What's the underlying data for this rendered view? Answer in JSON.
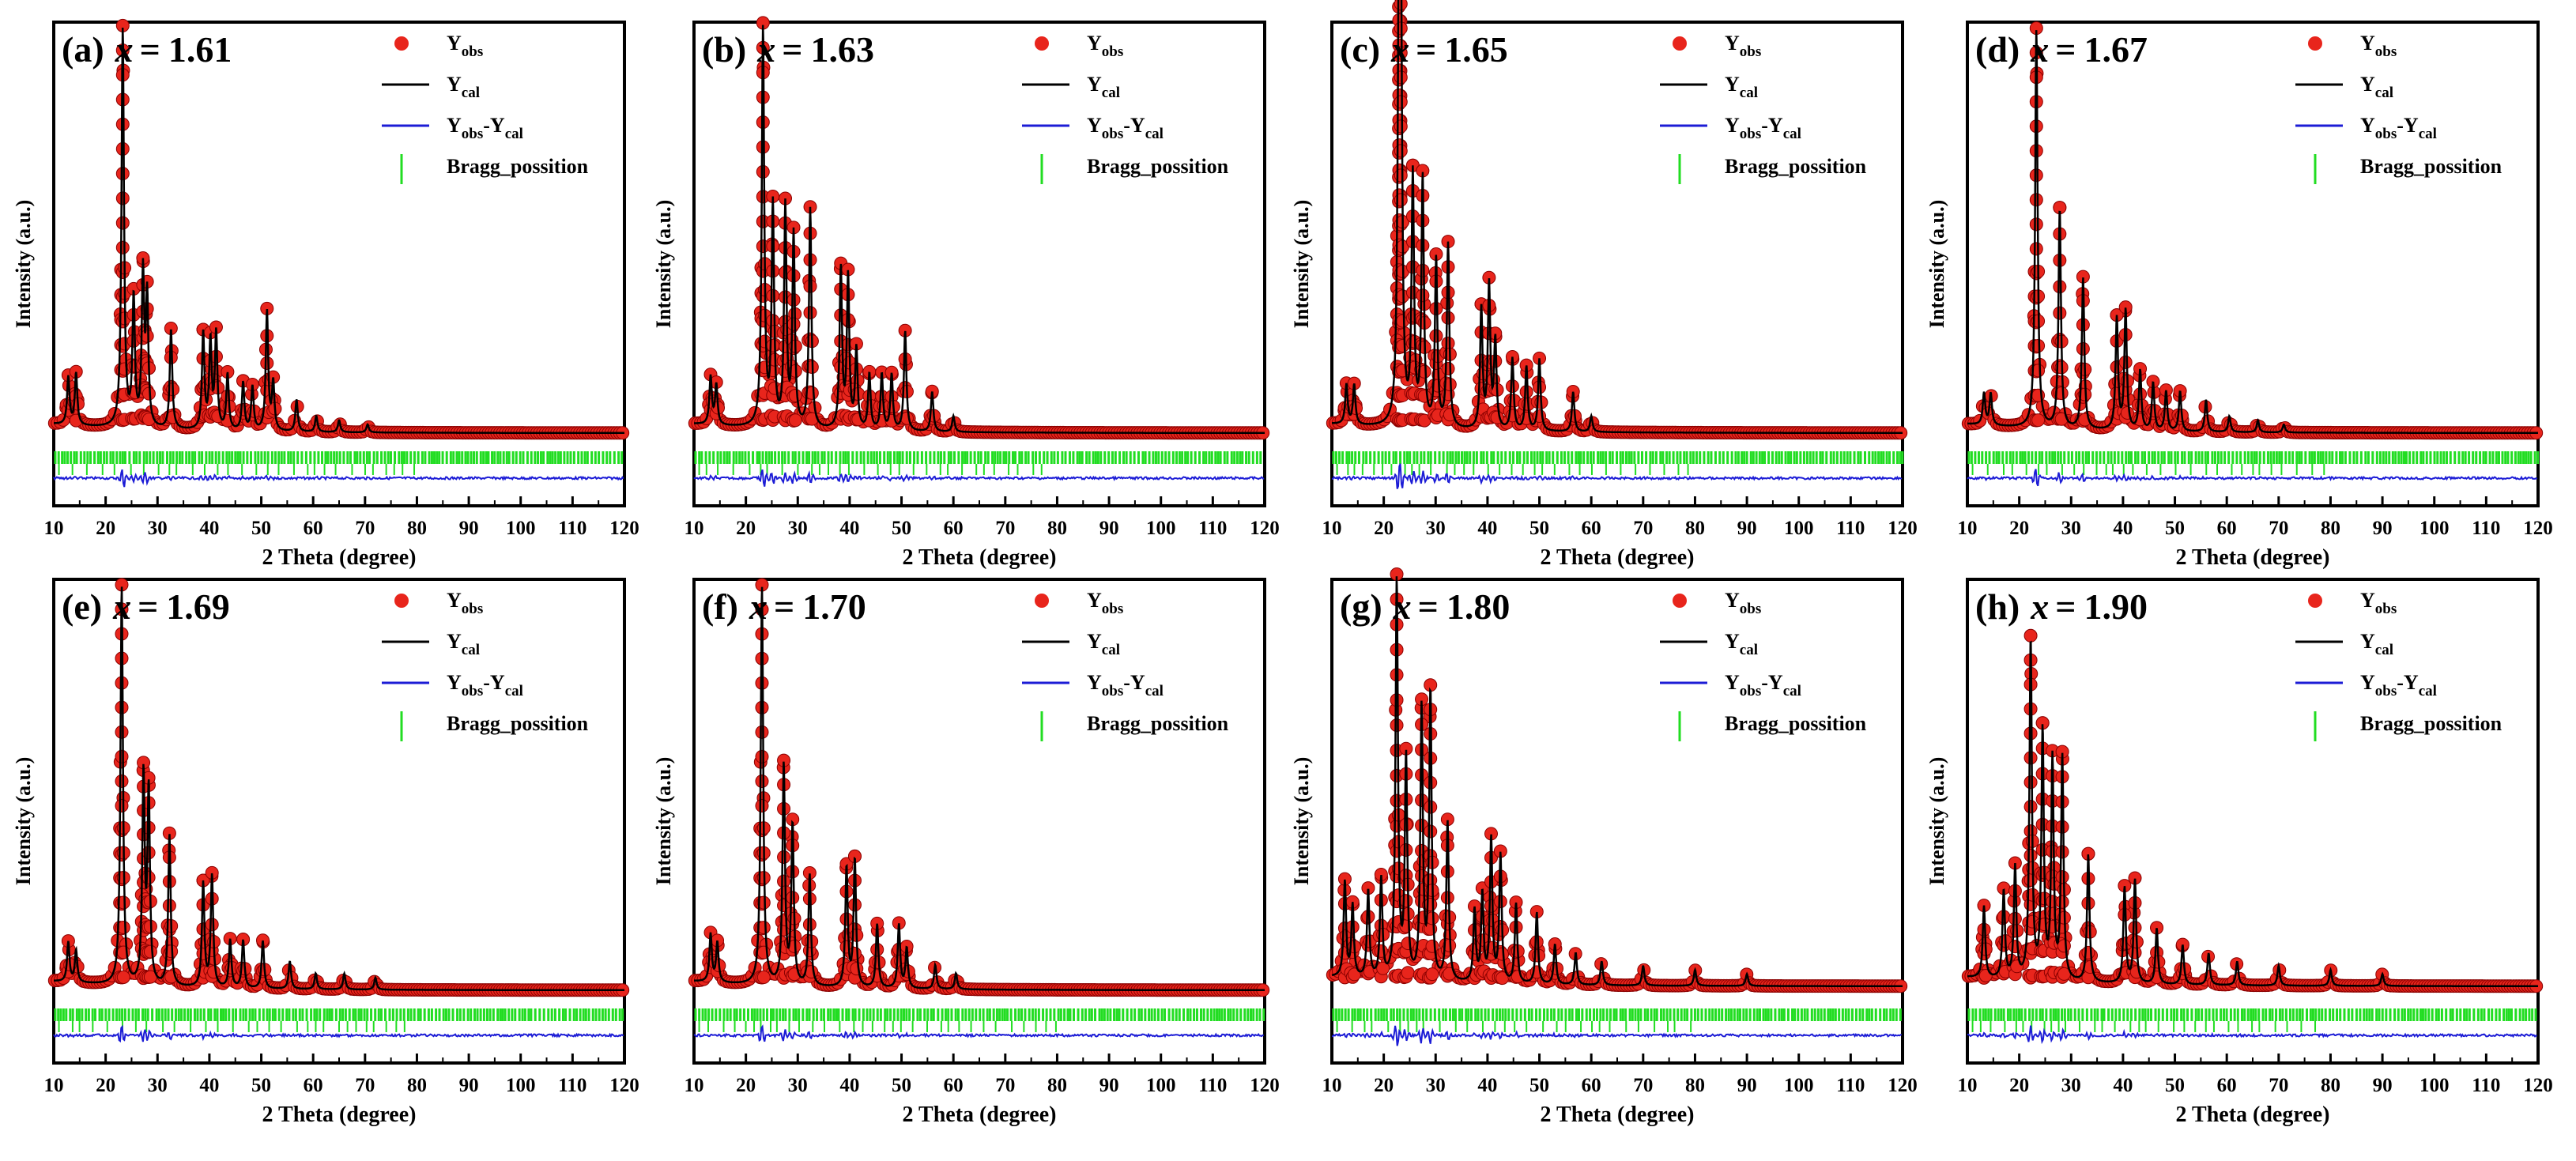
{
  "figure": {
    "shared_axes": {
      "xlabel": "2 Theta (degree)",
      "ylabel": "Intensity (a.u.)",
      "xlim": [
        10,
        120
      ],
      "xticks": [
        10,
        20,
        30,
        40,
        50,
        60,
        70,
        80,
        90,
        100,
        110,
        120
      ],
      "ytick_labels": false
    },
    "legend_entries": [
      {
        "base": "Y",
        "sub": "obs",
        "marker": "filled-circle",
        "color": "#e8251c"
      },
      {
        "base": "Y",
        "sub": "cal",
        "marker": "line",
        "color": "#000000"
      },
      {
        "base": "Y",
        "sub": "obs",
        "mid": "-Y",
        "sub2": "cal",
        "marker": "line",
        "color": "#1c1cd6"
      },
      {
        "base": "Bragg_possition",
        "sub": "",
        "marker": "vertical-tick",
        "color": "#22dd22"
      }
    ],
    "colors": {
      "observed": "#e8251c",
      "calculated": "#000000",
      "difference": "#1c1cd6",
      "bragg": "#22dd22",
      "axes": "#000000"
    }
  },
  "chart_data": [
    {
      "type": "line",
      "panel": "(a)",
      "var": "x",
      "value": "1.61",
      "xlabel": "2 Theta (degree)",
      "ylabel": "Intensity (a.u.)",
      "xlim": [
        10,
        120
      ],
      "ylim": [
        0,
        100
      ],
      "series": [
        {
          "name": "Yobs",
          "kind": "observed-points"
        },
        {
          "name": "Ycal",
          "kind": "calculated-line"
        },
        {
          "name": "Yobs-Ycal",
          "kind": "difference-line"
        },
        {
          "name": "Bragg_possition",
          "kind": "bragg-ticks"
        }
      ],
      "peaks": [
        [
          12.8,
          12
        ],
        [
          14.3,
          13
        ],
        [
          23.3,
          100
        ],
        [
          25.4,
          32
        ],
        [
          27.2,
          38
        ],
        [
          28.0,
          32
        ],
        [
          32.6,
          25
        ],
        [
          38.8,
          24
        ],
        [
          40.2,
          22
        ],
        [
          41.3,
          24
        ],
        [
          43.5,
          14
        ],
        [
          46.5,
          12
        ],
        [
          48.3,
          11
        ],
        [
          51.1,
          30
        ],
        [
          52.3,
          12
        ],
        [
          56.8,
          8
        ],
        [
          60.6,
          4
        ],
        [
          65.0,
          3
        ],
        [
          70.5,
          2
        ]
      ],
      "background": 3
    },
    {
      "type": "line",
      "panel": "(b)",
      "var": "x",
      "value": "1.63",
      "xlabel": "2 Theta (degree)",
      "ylabel": "Intensity (a.u.)",
      "xlim": [
        10,
        120
      ],
      "ylim": [
        0,
        100
      ],
      "series": [
        {
          "name": "Yobs",
          "kind": "observed-points"
        },
        {
          "name": "Ycal",
          "kind": "calculated-line"
        },
        {
          "name": "Yobs-Ycal",
          "kind": "difference-line"
        },
        {
          "name": "Bragg_possition",
          "kind": "bragg-ticks"
        }
      ],
      "peaks": [
        [
          13.2,
          12
        ],
        [
          14.3,
          10
        ],
        [
          23.3,
          100
        ],
        [
          25.2,
          55
        ],
        [
          27.6,
          55
        ],
        [
          29.2,
          48
        ],
        [
          32.4,
          55
        ],
        [
          38.3,
          40
        ],
        [
          39.7,
          38
        ],
        [
          41.3,
          20
        ],
        [
          43.8,
          14
        ],
        [
          46.2,
          14
        ],
        [
          48.1,
          14
        ],
        [
          50.7,
          25
        ],
        [
          55.9,
          10
        ],
        [
          60.0,
          4
        ]
      ],
      "background": 3
    },
    {
      "type": "line",
      "panel": "(c)",
      "var": "x",
      "value": "1.65",
      "xlabel": "2 Theta (degree)",
      "ylabel": "Intensity (a.u.)",
      "xlim": [
        10,
        120
      ],
      "ylim": [
        0,
        100
      ],
      "series": [
        {
          "name": "Yobs",
          "kind": "observed-points"
        },
        {
          "name": "Ycal",
          "kind": "calculated-line"
        },
        {
          "name": "Yobs-Ycal",
          "kind": "difference-line"
        },
        {
          "name": "Bragg_possition",
          "kind": "bragg-ticks"
        }
      ],
      "peaks": [
        [
          12.8,
          10
        ],
        [
          14.3,
          10
        ],
        [
          22.9,
          90
        ],
        [
          23.3,
          100
        ],
        [
          25.6,
          62
        ],
        [
          27.5,
          62
        ],
        [
          30.1,
          42
        ],
        [
          32.4,
          46
        ],
        [
          38.8,
          30
        ],
        [
          40.3,
          36
        ],
        [
          41.5,
          22
        ],
        [
          44.8,
          18
        ],
        [
          47.5,
          16
        ],
        [
          50.0,
          18
        ],
        [
          56.5,
          10
        ],
        [
          60.0,
          4
        ]
      ],
      "background": 3
    },
    {
      "type": "line",
      "panel": "(d)",
      "var": "x",
      "value": "1.67",
      "xlabel": "2 Theta (degree)",
      "ylabel": "Intensity (a.u.)",
      "xlim": [
        10,
        120
      ],
      "ylim": [
        0,
        100
      ],
      "series": [
        {
          "name": "Yobs",
          "kind": "observed-points"
        },
        {
          "name": "Ycal",
          "kind": "calculated-line"
        },
        {
          "name": "Yobs-Ycal",
          "kind": "difference-line"
        },
        {
          "name": "Bragg_possition",
          "kind": "bragg-ticks"
        }
      ],
      "peaks": [
        [
          13.2,
          8
        ],
        [
          14.5,
          8
        ],
        [
          23.3,
          100
        ],
        [
          27.8,
          55
        ],
        [
          32.3,
          38
        ],
        [
          38.8,
          28
        ],
        [
          40.5,
          30
        ],
        [
          43.3,
          15
        ],
        [
          45.8,
          12
        ],
        [
          48.3,
          10
        ],
        [
          51.0,
          10
        ],
        [
          56.0,
          8
        ],
        [
          60.5,
          4
        ],
        [
          66.0,
          3
        ],
        [
          71.0,
          2
        ]
      ],
      "background": 3
    },
    {
      "type": "line",
      "panel": "(e)",
      "var": "x",
      "value": "1.69",
      "xlabel": "2 Theta (degree)",
      "ylabel": "Intensity (a.u.)",
      "xlim": [
        10,
        120
      ],
      "ylim": [
        0,
        100
      ],
      "series": [
        {
          "name": "Yobs",
          "kind": "observed-points"
        },
        {
          "name": "Ycal",
          "kind": "calculated-line"
        },
        {
          "name": "Yobs-Ycal",
          "kind": "difference-line"
        },
        {
          "name": "Bragg_possition",
          "kind": "bragg-ticks"
        }
      ],
      "peaks": [
        [
          12.8,
          10
        ],
        [
          14.3,
          8
        ],
        [
          23.1,
          100
        ],
        [
          27.3,
          52
        ],
        [
          28.3,
          48
        ],
        [
          32.3,
          38
        ],
        [
          38.8,
          26
        ],
        [
          40.5,
          28
        ],
        [
          44.0,
          12
        ],
        [
          46.5,
          12
        ],
        [
          50.3,
          12
        ],
        [
          55.5,
          7
        ],
        [
          60.5,
          4
        ],
        [
          66.0,
          4
        ],
        [
          72.0,
          3
        ]
      ],
      "background": 3
    },
    {
      "type": "line",
      "panel": "(f)",
      "var": "x",
      "value": "1.70",
      "xlabel": "2 Theta (degree)",
      "ylabel": "Intensity (a.u.)",
      "xlim": [
        10,
        120
      ],
      "ylim": [
        0,
        100
      ],
      "series": [
        {
          "name": "Yobs",
          "kind": "observed-points"
        },
        {
          "name": "Ycal",
          "kind": "calculated-line"
        },
        {
          "name": "Yobs-Ycal",
          "kind": "difference-line"
        },
        {
          "name": "Bragg_possition",
          "kind": "bragg-ticks"
        }
      ],
      "peaks": [
        [
          13.2,
          12
        ],
        [
          14.5,
          10
        ],
        [
          23.1,
          100
        ],
        [
          27.3,
          55
        ],
        [
          29.0,
          40
        ],
        [
          32.3,
          28
        ],
        [
          39.4,
          30
        ],
        [
          41.0,
          32
        ],
        [
          45.3,
          16
        ],
        [
          49.5,
          16
        ],
        [
          51.0,
          10
        ],
        [
          56.5,
          6
        ],
        [
          60.5,
          4
        ]
      ],
      "background": 3
    },
    {
      "type": "line",
      "panel": "(g)",
      "var": "x",
      "value": "1.80",
      "xlabel": "2 Theta (degree)",
      "ylabel": "Intensity (a.u.)",
      "xlim": [
        10,
        120
      ],
      "ylim": [
        0,
        100
      ],
      "series": [
        {
          "name": "Yobs",
          "kind": "observed-points"
        },
        {
          "name": "Ycal",
          "kind": "calculated-line"
        },
        {
          "name": "Yobs-Ycal",
          "kind": "difference-line"
        },
        {
          "name": "Bragg_possition",
          "kind": "bragg-ticks"
        }
      ],
      "peaks": [
        [
          12.5,
          24
        ],
        [
          14.0,
          18
        ],
        [
          17.0,
          22
        ],
        [
          19.5,
          25
        ],
        [
          22.5,
          100
        ],
        [
          24.3,
          55
        ],
        [
          27.3,
          68
        ],
        [
          29.0,
          72
        ],
        [
          32.3,
          40
        ],
        [
          37.5,
          18
        ],
        [
          39.0,
          22
        ],
        [
          40.7,
          36
        ],
        [
          42.5,
          32
        ],
        [
          45.5,
          20
        ],
        [
          49.5,
          18
        ],
        [
          53.0,
          10
        ],
        [
          57.0,
          8
        ],
        [
          62.0,
          6
        ],
        [
          70.0,
          5
        ],
        [
          80.0,
          4
        ],
        [
          90.0,
          3
        ]
      ],
      "background": 4
    },
    {
      "type": "line",
      "panel": "(h)",
      "var": "x",
      "value": "1.90",
      "xlabel": "2 Theta (degree)",
      "ylabel": "Intensity (a.u.)",
      "xlim": [
        10,
        120
      ],
      "ylim": [
        0,
        100
      ],
      "series": [
        {
          "name": "Yobs",
          "kind": "observed-points"
        },
        {
          "name": "Ycal",
          "kind": "calculated-line"
        },
        {
          "name": "Yobs-Ycal",
          "kind": "difference-line"
        },
        {
          "name": "Bragg_possition",
          "kind": "bragg-ticks"
        }
      ],
      "peaks": [
        [
          13.2,
          18
        ],
        [
          17.0,
          22
        ],
        [
          19.2,
          28
        ],
        [
          22.2,
          85
        ],
        [
          24.5,
          62
        ],
        [
          26.4,
          55
        ],
        [
          28.3,
          56
        ],
        [
          33.3,
          32
        ],
        [
          40.3,
          24
        ],
        [
          42.3,
          26
        ],
        [
          46.5,
          14
        ],
        [
          51.5,
          10
        ],
        [
          56.5,
          8
        ],
        [
          62.0,
          6
        ],
        [
          70.0,
          5
        ],
        [
          80.0,
          4
        ],
        [
          90.0,
          3
        ]
      ],
      "background": 4
    }
  ]
}
